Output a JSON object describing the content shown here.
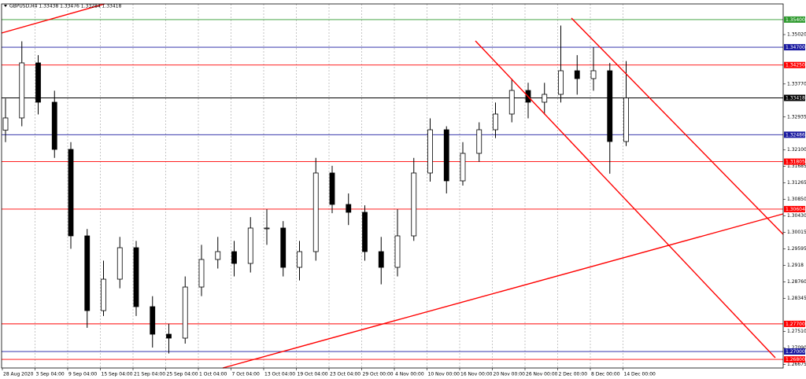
{
  "chart_data": {
    "type": "candlestick",
    "symbol_info": "GBPUSD,H4  1.33438 1.33476 1.33284 1.33418",
    "categories": [
      "28 Aug 2020",
      null,
      "3 Sep 04:00",
      null,
      "9 Sep 04:00",
      null,
      "15 Sep 04:00",
      null,
      "21 Sep 04:00",
      null,
      "25 Sep 04:00",
      null,
      "1 Oct 04:00",
      null,
      "7 Oct 04:00",
      null,
      "13 Oct 04:00",
      null,
      "19 Oct 04:00",
      null,
      "23 Oct 04:00",
      null,
      "29 Oct 00:00",
      null,
      "4 Nov 00:00",
      null,
      "10 Nov 00:00",
      null,
      "16 Nov 00:00",
      null,
      "20 Nov 00:00",
      null,
      "26 Nov 00:00",
      null,
      "2 Dec 00:00",
      null,
      "8 Dec 00:00",
      null,
      "14 Dec 00:00"
    ],
    "open": [
      1.326,
      1.32911,
      1.34304,
      1.33309,
      1.32115,
      1.29926,
      1.28035,
      1.28831,
      1.29627,
      1.28135,
      1.27438,
      1.27339,
      1.28632,
      1.29329,
      1.29528,
      1.29229,
      1.30125,
      1.30125,
      1.2913,
      1.29528,
      1.31518,
      1.30722,
      1.30523,
      1.29528,
      1.2913,
      1.29926,
      1.31518,
      1.32612,
      1.31319,
      1.32015,
      1.32612,
      1.3301,
      1.33607,
      1.33309,
      1.33508,
      1.34105,
      1.33906,
      1.34105,
      1.32314
    ],
    "high": [
      1.334,
      1.3485,
      1.345,
      1.336,
      1.323,
      1.301,
      1.293,
      1.299,
      1.298,
      1.284,
      1.277,
      1.289,
      1.297,
      1.299,
      1.298,
      1.304,
      1.306,
      1.303,
      1.298,
      1.319,
      1.317,
      1.31,
      1.307,
      1.299,
      1.306,
      1.319,
      1.329,
      1.327,
      1.323,
      1.328,
      1.333,
      1.339,
      1.338,
      1.338,
      1.3525,
      1.345,
      1.347,
      1.343,
      1.3435
    ],
    "low": [
      1.323,
      1.327,
      1.33,
      1.319,
      1.296,
      1.276,
      1.279,
      1.286,
      1.279,
      1.271,
      1.2695,
      1.272,
      1.284,
      1.291,
      1.289,
      1.29,
      1.297,
      1.289,
      1.288,
      1.293,
      1.305,
      1.302,
      1.293,
      1.287,
      1.289,
      1.298,
      1.313,
      1.31,
      1.312,
      1.318,
      1.324,
      1.328,
      1.329,
      1.33,
      1.333,
      1.335,
      1.336,
      1.315,
      1.322
    ],
    "close": [
      1.32911,
      1.34304,
      1.33309,
      1.32115,
      1.29926,
      1.28035,
      1.28831,
      1.29627,
      1.28135,
      1.27438,
      1.27339,
      1.28632,
      1.29329,
      1.29528,
      1.29229,
      1.30125,
      1.30125,
      1.2913,
      1.29528,
      1.31518,
      1.30722,
      1.30523,
      1.29528,
      1.2913,
      1.29926,
      1.31518,
      1.32612,
      1.31319,
      1.32015,
      1.32612,
      1.3301,
      1.33607,
      1.33309,
      1.33508,
      1.34105,
      1.33906,
      1.34105,
      1.32314,
      1.33418
    ],
    "up_color": "#ffffff",
    "down_color": "#000000",
    "ylim": [
      1.26583,
      1.35796
    ],
    "yticks": [
      {
        "value": 1.3502,
        "label": "1.35020"
      },
      {
        "value": 1.3377,
        "label": "1.33770"
      },
      {
        "value": 1.32935,
        "label": "1.32935"
      },
      {
        "value": 1.321,
        "label": "1.32100"
      },
      {
        "value": 1.31685,
        "label": "1.31685"
      },
      {
        "value": 1.31265,
        "label": "1.31265"
      },
      {
        "value": 1.3085,
        "label": "1.30850"
      },
      {
        "value": 1.3043,
        "label": "1.30430"
      },
      {
        "value": 1.30015,
        "label": "1.30015"
      },
      {
        "value": 1.29595,
        "label": "1.29595"
      },
      1.2918,
      {
        "value": 1.2876,
        "label": "1.28760"
      },
      1.28345,
      {
        "value": 1.2751,
        "label": "1.27510"
      },
      {
        "value": 1.2709,
        "label": "1.27090"
      },
      1.26675
    ],
    "levels": [
      {
        "value": 1.354,
        "label": "1.35400",
        "color": "#2e9a2e"
      },
      {
        "value": 1.347,
        "label": "1.34700",
        "color": "#1a1aa0"
      },
      {
        "value": 1.3425,
        "label": "1.34250",
        "color": "#ff0000"
      },
      {
        "value": 1.33418,
        "label": "1.33418",
        "color": "#000000"
      },
      {
        "value": 1.32486,
        "label": "1.32486",
        "color": "#1a1aa0"
      },
      {
        "value": 1.31805,
        "label": "1.31805",
        "color": "#ff0000"
      },
      {
        "value": 1.30604,
        "label": "1.30604",
        "color": "#ff0000"
      },
      {
        "value": 1.277,
        "label": "1.27700",
        "color": "#ff0000"
      },
      {
        "value": 1.27,
        "label": "1.27000",
        "color": "#1a1aa0"
      },
      {
        "value": 1.268,
        "label": "1.26800",
        "color": "#ff0000"
      }
    ],
    "grid": true
  }
}
